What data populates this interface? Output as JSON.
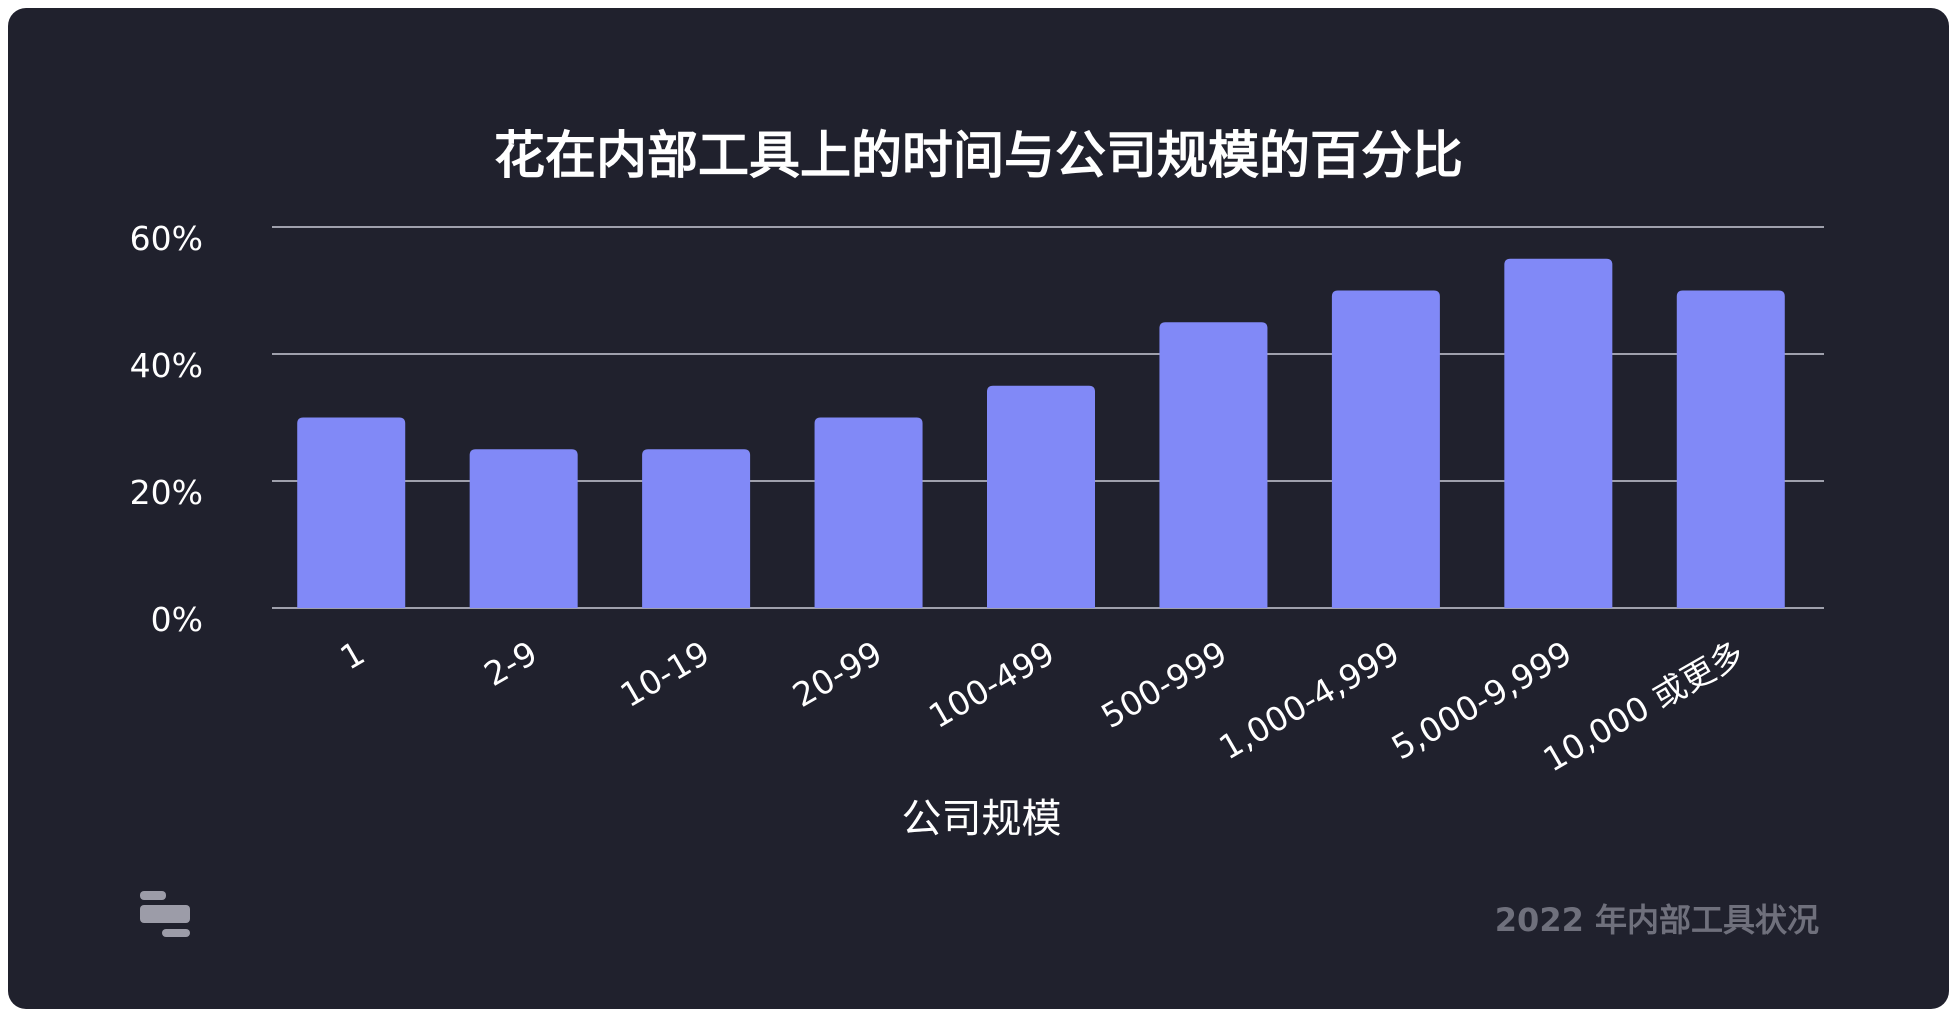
{
  "chart_data": {
    "type": "bar",
    "title": "花在内部工具上的时间与公司规模的百分比",
    "xlabel": "公司规模",
    "ylabel": "",
    "categories": [
      "1",
      "2-9",
      "10-19",
      "20-99",
      "100-499",
      "500-999",
      "1,000-4,999",
      "5,000-9,999",
      "10,000 或更多"
    ],
    "values": [
      30,
      25,
      25,
      30,
      35,
      45,
      50,
      55,
      50
    ],
    "ylim": [
      0,
      60
    ],
    "yticks": [
      0,
      20,
      40,
      60
    ],
    "ytick_labels": [
      "0%",
      "20%",
      "40%",
      "60%"
    ],
    "grid": true,
    "bar_color": "#8189f7",
    "background": "#20212d"
  },
  "footer": {
    "source": "2022 年内部工具状况",
    "logo_icon": "retool-logo-icon"
  }
}
